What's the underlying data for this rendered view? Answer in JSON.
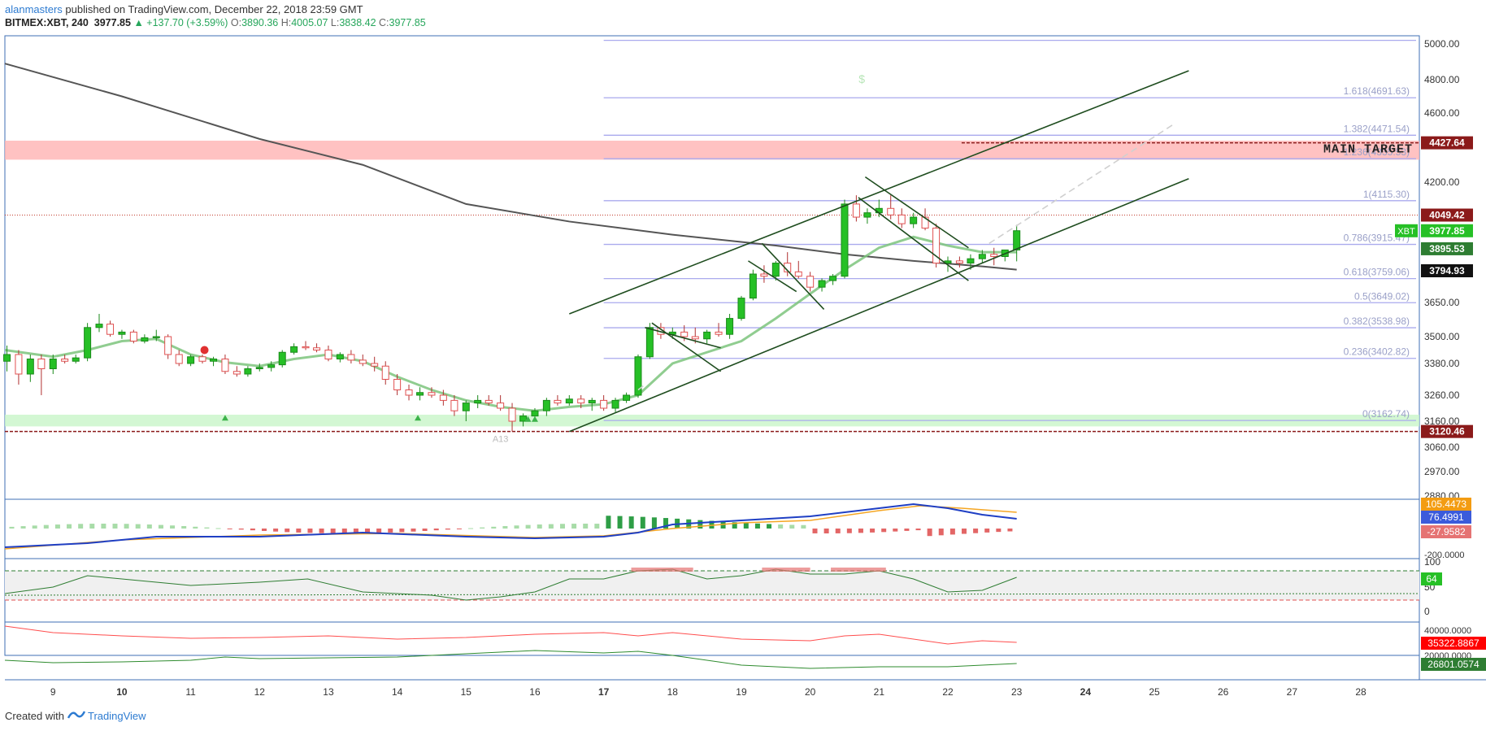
{
  "header": {
    "author": "alanmasters",
    "published_text": " published on TradingView.com, December 22, 2018 23:59 GMT",
    "symbol": "BITMEX:XBT, 240",
    "last": "3977.85",
    "change": "+137.70 (+3.59%)",
    "o_label": "O:",
    "o": "3890.36",
    "h_label": "H:",
    "h": "4005.07",
    "l_label": "L:",
    "l": "3838.42",
    "c_label": "C:",
    "c": "3977.85"
  },
  "footer": {
    "created_with": "Created with",
    "brand": "TradingView"
  },
  "colors": {
    "up": "#26c026",
    "down": "#e05050",
    "channel": "#1f4d1f",
    "ma_long": "#555555",
    "ema": "#7cc47c",
    "fib": "#aaaaee",
    "resistance_zone": "#ffb3b3",
    "support_zone": "#c8f5c8"
  },
  "chart_data": {
    "type": "candlestick",
    "symbol": "XBT",
    "x_ticks": [
      "9",
      "10",
      "11",
      "12",
      "13",
      "14",
      "15",
      "16",
      "17",
      "18",
      "19",
      "20",
      "21",
      "22",
      "23",
      "24",
      "25",
      "26",
      "27",
      "28"
    ],
    "x_tick_values": [
      9,
      10,
      11,
      12,
      13,
      14,
      15,
      16,
      17,
      18,
      19,
      20,
      21,
      22,
      23,
      24,
      25,
      26,
      27,
      28
    ],
    "xlim": [
      8.3,
      28.85
    ],
    "y_ticks": [
      "5000.00",
      "4800.00",
      "4600.00",
      "4200.00",
      "3650.00",
      "3500.00",
      "3380.00",
      "3260.00",
      "3160.00",
      "3060.00",
      "2970.00",
      "2880.00"
    ],
    "y_tick_values": [
      5000,
      4800,
      4600,
      4200,
      3650,
      3500,
      3380,
      3260,
      3160,
      3060,
      2970,
      2880
    ],
    "price_labels": [
      {
        "text": "4427.64",
        "value": 4427.64,
        "color": "#8b1a1a"
      },
      {
        "text": "4049.42",
        "value": 4049.42,
        "color": "#8b1a1a"
      },
      {
        "text": "3977.85",
        "value": 3977.85,
        "color": "#26c026",
        "tag": "XBT"
      },
      {
        "text": "3895.53",
        "value": 3895.53,
        "color": "#2e7d32"
      },
      {
        "text": "3794.93",
        "value": 3794.93,
        "color": "#111111"
      },
      {
        "text": "3120.46",
        "value": 3120.46,
        "color": "#8b1a1a"
      }
    ],
    "fib_levels": [
      {
        "label": "1.618(4691.63)",
        "value": 4691.63
      },
      {
        "label": "1.382(4471.54)",
        "value": 4471.54
      },
      {
        "label": "1.236(4335.53)",
        "value": 4335.53
      },
      {
        "label": "1(4115.30)",
        "value": 4115.3
      },
      {
        "label": "0.786(3915.47)",
        "value": 3915.47
      },
      {
        "label": "0.618(3759.06)",
        "value": 3759.06
      },
      {
        "label": "0.5(3649.02)",
        "value": 3649.02
      },
      {
        "label": "0.382(3538.98)",
        "value": 3538.98
      },
      {
        "label": "0.236(3402.82)",
        "value": 3402.82
      },
      {
        "label": "0(3162.74)",
        "value": 3162.74
      }
    ],
    "annotations": [
      {
        "text": "MAIN TARGET",
        "value": 4400
      },
      {
        "text": "A13",
        "x": 15.5,
        "value": 3090
      },
      {
        "text": "$",
        "x": 20.75,
        "value": 4780
      }
    ],
    "resistance_zone": [
      4330,
      4440
    ],
    "support_zone": [
      3140,
      3185
    ],
    "candles": [
      [
        8.33,
        3390,
        3460,
        3350,
        3420
      ],
      [
        8.5,
        3420,
        3440,
        3300,
        3340
      ],
      [
        8.67,
        3340,
        3420,
        3310,
        3400
      ],
      [
        8.83,
        3400,
        3420,
        3260,
        3360
      ],
      [
        9.0,
        3360,
        3420,
        3340,
        3400
      ],
      [
        9.17,
        3400,
        3420,
        3380,
        3390
      ],
      [
        9.33,
        3390,
        3420,
        3380,
        3405
      ],
      [
        9.5,
        3405,
        3560,
        3390,
        3540
      ],
      [
        9.67,
        3540,
        3600,
        3520,
        3555
      ],
      [
        9.83,
        3555,
        3570,
        3500,
        3510
      ],
      [
        10.0,
        3510,
        3530,
        3490,
        3520
      ],
      [
        10.17,
        3520,
        3530,
        3470,
        3480
      ],
      [
        10.33,
        3480,
        3510,
        3470,
        3495
      ],
      [
        10.5,
        3495,
        3530,
        3480,
        3500
      ],
      [
        10.67,
        3500,
        3510,
        3400,
        3420
      ],
      [
        10.83,
        3420,
        3440,
        3370,
        3380
      ],
      [
        11.0,
        3380,
        3420,
        3370,
        3410
      ],
      [
        11.17,
        3410,
        3420,
        3380,
        3390
      ],
      [
        11.33,
        3390,
        3410,
        3370,
        3400
      ],
      [
        11.5,
        3400,
        3420,
        3340,
        3350
      ],
      [
        11.67,
        3350,
        3370,
        3330,
        3340
      ],
      [
        11.83,
        3340,
        3370,
        3330,
        3360
      ],
      [
        12.0,
        3360,
        3380,
        3350,
        3365
      ],
      [
        12.17,
        3365,
        3390,
        3350,
        3375
      ],
      [
        12.33,
        3375,
        3440,
        3365,
        3430
      ],
      [
        12.5,
        3430,
        3470,
        3420,
        3455
      ],
      [
        12.67,
        3455,
        3480,
        3440,
        3450
      ],
      [
        12.83,
        3450,
        3470,
        3430,
        3440
      ],
      [
        13.0,
        3440,
        3460,
        3390,
        3400
      ],
      [
        13.17,
        3400,
        3430,
        3385,
        3420
      ],
      [
        13.33,
        3420,
        3440,
        3380,
        3395
      ],
      [
        13.5,
        3395,
        3420,
        3370,
        3380
      ],
      [
        13.67,
        3380,
        3410,
        3350,
        3370
      ],
      [
        13.83,
        3370,
        3390,
        3300,
        3320
      ],
      [
        14.0,
        3320,
        3340,
        3260,
        3280
      ],
      [
        14.17,
        3280,
        3300,
        3240,
        3260
      ],
      [
        14.33,
        3260,
        3290,
        3240,
        3270
      ],
      [
        14.5,
        3270,
        3290,
        3250,
        3260
      ],
      [
        14.67,
        3260,
        3280,
        3220,
        3240
      ],
      [
        14.83,
        3240,
        3260,
        3180,
        3200
      ],
      [
        15.0,
        3200,
        3240,
        3160,
        3230
      ],
      [
        15.17,
        3230,
        3260,
        3210,
        3240
      ],
      [
        15.33,
        3240,
        3260,
        3220,
        3230
      ],
      [
        15.5,
        3230,
        3260,
        3200,
        3210
      ],
      [
        15.67,
        3210,
        3230,
        3120,
        3160
      ],
      [
        15.83,
        3160,
        3190,
        3140,
        3180
      ],
      [
        16.0,
        3180,
        3210,
        3160,
        3200
      ],
      [
        16.17,
        3200,
        3250,
        3180,
        3240
      ],
      [
        16.33,
        3240,
        3260,
        3220,
        3230
      ],
      [
        16.5,
        3230,
        3260,
        3220,
        3245
      ],
      [
        16.67,
        3245,
        3260,
        3210,
        3230
      ],
      [
        16.83,
        3230,
        3250,
        3200,
        3240
      ],
      [
        17.0,
        3240,
        3260,
        3200,
        3210
      ],
      [
        17.17,
        3210,
        3250,
        3195,
        3240
      ],
      [
        17.33,
        3240,
        3270,
        3230,
        3260
      ],
      [
        17.5,
        3260,
        3420,
        3250,
        3410
      ],
      [
        17.67,
        3410,
        3560,
        3400,
        3540
      ],
      [
        17.83,
        3540,
        3560,
        3490,
        3510
      ],
      [
        18.0,
        3510,
        3540,
        3490,
        3520
      ],
      [
        18.17,
        3520,
        3550,
        3480,
        3500
      ],
      [
        18.33,
        3500,
        3540,
        3470,
        3490
      ],
      [
        18.5,
        3490,
        3530,
        3470,
        3520
      ],
      [
        18.67,
        3520,
        3560,
        3500,
        3510
      ],
      [
        18.83,
        3510,
        3600,
        3490,
        3580
      ],
      [
        19.0,
        3580,
        3680,
        3570,
        3670
      ],
      [
        19.17,
        3670,
        3800,
        3660,
        3780
      ],
      [
        19.33,
        3780,
        3820,
        3740,
        3770
      ],
      [
        19.5,
        3770,
        3840,
        3750,
        3830
      ],
      [
        19.67,
        3830,
        3880,
        3770,
        3790
      ],
      [
        19.83,
        3790,
        3840,
        3760,
        3770
      ],
      [
        20.0,
        3770,
        3790,
        3700,
        3720
      ],
      [
        20.17,
        3720,
        3760,
        3700,
        3750
      ],
      [
        20.33,
        3750,
        3780,
        3730,
        3770
      ],
      [
        20.5,
        3770,
        4120,
        3760,
        4100
      ],
      [
        20.67,
        4100,
        4140,
        4020,
        4040
      ],
      [
        20.83,
        4040,
        4080,
        4010,
        4060
      ],
      [
        21.0,
        4060,
        4120,
        4040,
        4080
      ],
      [
        21.17,
        4080,
        4140,
        4030,
        4050
      ],
      [
        21.33,
        4050,
        4080,
        3990,
        4010
      ],
      [
        21.5,
        4010,
        4060,
        3990,
        4040
      ],
      [
        21.67,
        4040,
        4080,
        3980,
        3990
      ],
      [
        21.83,
        3990,
        4010,
        3810,
        3830
      ],
      [
        22.0,
        3830,
        3860,
        3790,
        3840
      ],
      [
        22.17,
        3840,
        3860,
        3810,
        3830
      ],
      [
        22.33,
        3830,
        3870,
        3800,
        3850
      ],
      [
        22.5,
        3850,
        3890,
        3830,
        3870
      ],
      [
        22.67,
        3870,
        3900,
        3820,
        3860
      ],
      [
        22.83,
        3860,
        3880,
        3838,
        3890
      ],
      [
        23.0,
        3890,
        4005,
        3838,
        3978
      ]
    ]
  },
  "macd": {
    "tick": "-200.0000",
    "labels": [
      {
        "text": "76.4991",
        "color": "#3b5bdb"
      },
      {
        "text": "-27.9582",
        "color": "#e57373"
      },
      {
        "text": "105.4473",
        "color": "#f39c12"
      }
    ]
  },
  "rsi": {
    "ticks": [
      "100",
      "50",
      "0"
    ],
    "value_label": "64"
  },
  "dmi": {
    "ticks": [
      "40000.0000",
      "20000.0000"
    ],
    "labels": [
      {
        "text": "35322.8867",
        "color": "#ff0000"
      },
      {
        "text": "26801.0574",
        "color": "#2e7d32"
      }
    ]
  }
}
